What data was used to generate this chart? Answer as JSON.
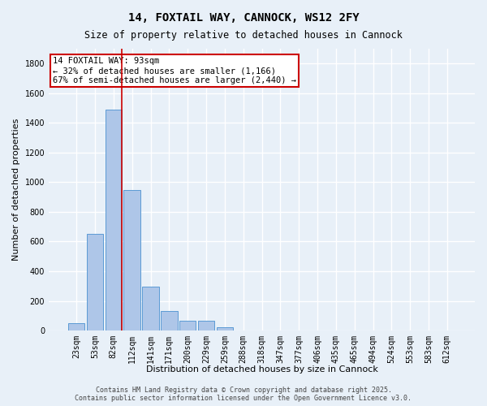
{
  "title1": "14, FOXTAIL WAY, CANNOCK, WS12 2FY",
  "title2": "Size of property relative to detached houses in Cannock",
  "xlabel": "Distribution of detached houses by size in Cannock",
  "ylabel": "Number of detached properties",
  "categories": [
    "23sqm",
    "53sqm",
    "82sqm",
    "112sqm",
    "141sqm",
    "171sqm",
    "200sqm",
    "229sqm",
    "259sqm",
    "288sqm",
    "318sqm",
    "347sqm",
    "377sqm",
    "406sqm",
    "435sqm",
    "465sqm",
    "494sqm",
    "524sqm",
    "553sqm",
    "583sqm",
    "612sqm"
  ],
  "values": [
    50,
    650,
    1490,
    950,
    295,
    130,
    68,
    65,
    20,
    3,
    0,
    0,
    0,
    0,
    0,
    0,
    0,
    0,
    0,
    0,
    0
  ],
  "bar_color": "#aec6e8",
  "bar_edge_color": "#5b9bd5",
  "vline_color": "#cc0000",
  "annotation_text": "14 FOXTAIL WAY: 93sqm\n← 32% of detached houses are smaller (1,166)\n67% of semi-detached houses are larger (2,440) →",
  "annotation_box_color": "#cc0000",
  "annotation_text_color": "#000000",
  "ylim": [
    0,
    1900
  ],
  "yticks": [
    0,
    200,
    400,
    600,
    800,
    1000,
    1200,
    1400,
    1600,
    1800
  ],
  "bg_color": "#e8f0f8",
  "plot_bg_color": "#e8f0f8",
  "grid_color": "#ffffff",
  "footer1": "Contains HM Land Registry data © Crown copyright and database right 2025.",
  "footer2": "Contains public sector information licensed under the Open Government Licence v3.0.",
  "title_fontsize": 10,
  "subtitle_fontsize": 8.5,
  "axis_label_fontsize": 8,
  "tick_fontsize": 7,
  "footer_fontsize": 6,
  "annotation_fontsize": 7.5
}
